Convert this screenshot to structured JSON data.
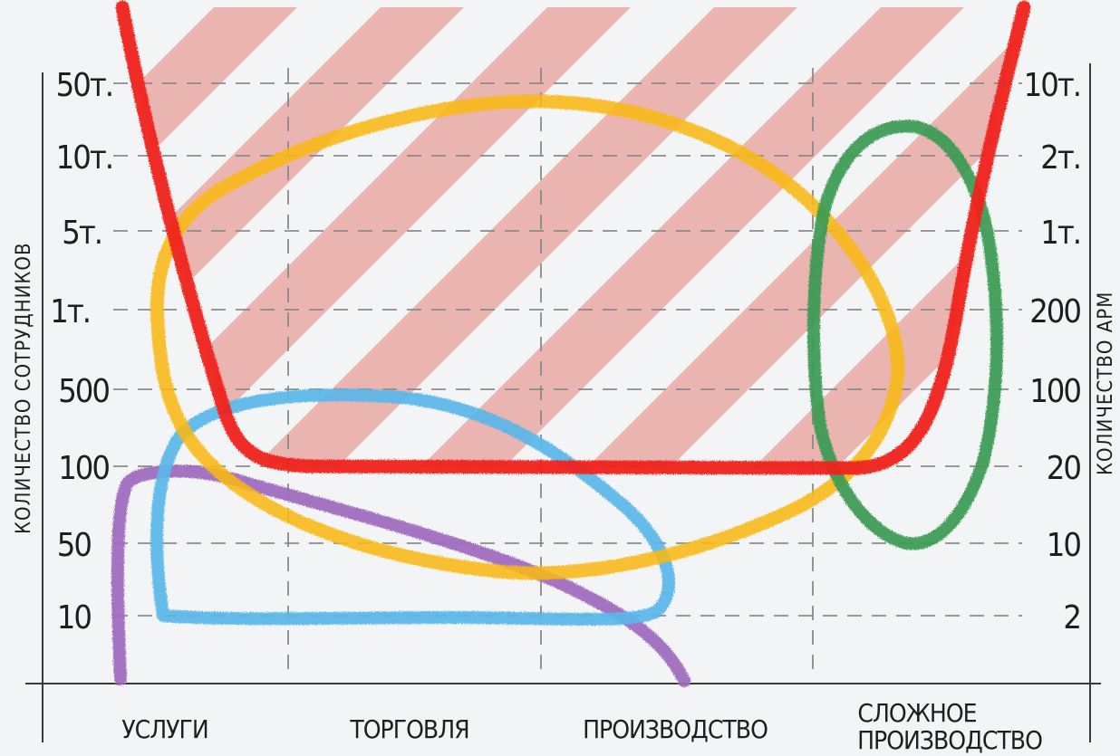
{
  "left_axis": {
    "title": "КОЛИЧЕСТВО   СОТРУДНИКОВ",
    "ticks": [
      "50т.",
      "10т.",
      "5т.",
      "1т.",
      "500",
      "100",
      "50",
      "10"
    ]
  },
  "right_axis": {
    "title": "КОЛИЧЕСТВО   АРМ",
    "ticks": [
      "10т.",
      "2т.",
      "1т.",
      "200",
      "100",
      "20",
      "10",
      "2"
    ]
  },
  "categories": {
    "c1": "УСЛУГИ",
    "c2": "ТОРГОВЛЯ",
    "c3": "ПРОИЗВОДСТВО",
    "c4a": "СЛОЖНОЕ",
    "c4b": "ПРОИЗВОДСТВО"
  },
  "colors": {
    "hatch_band": "#e8a8a5",
    "red_curve": "#f0231c",
    "yellow_curve": "#f9b912",
    "blue_curve": "#5ab7ea",
    "purple_curve": "#9e69bd",
    "green_curve": "#3a9b52"
  },
  "shapes": [
    "striped-zone",
    "red-boundary",
    "yellow-oval",
    "blue-loop",
    "purple-curve",
    "green-oval"
  ]
}
